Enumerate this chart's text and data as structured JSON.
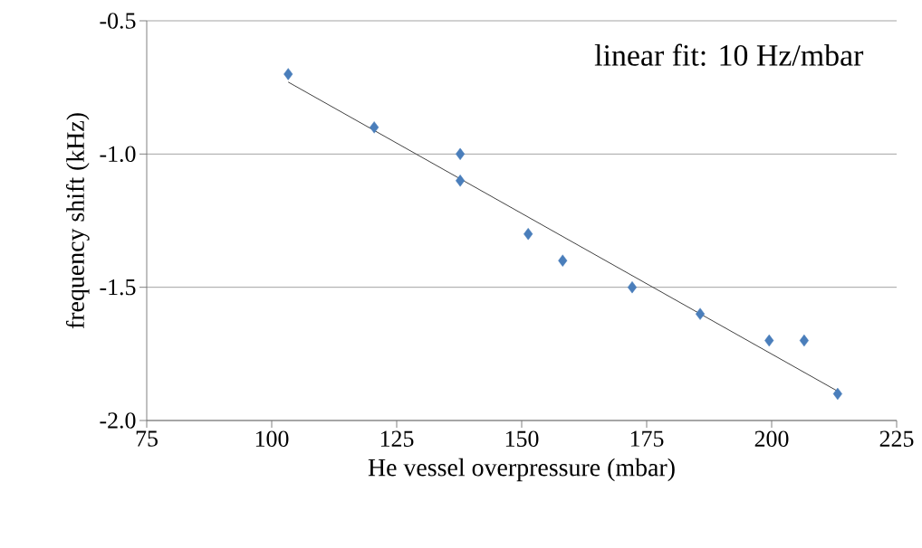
{
  "chart_data": {
    "type": "scatter",
    "xlabel": "He vessel overpressure (mbar)",
    "ylabel": "frequency shift (kHz)",
    "annotations": [
      "linear fit: 10 Hz/mbar"
    ],
    "xlim": [
      75,
      225
    ],
    "xticks": [
      75,
      100,
      125,
      150,
      175,
      200,
      225
    ],
    "ylim": [
      -2.0,
      -0.5
    ],
    "yticks": [
      {
        "value": -2.0,
        "label": "-2.0"
      },
      {
        "value": -1.5,
        "label": "-1.5"
      },
      {
        "value": -1.0,
        "label": "-1.0"
      },
      {
        "value": -0.5,
        "label": "-0.5"
      }
    ],
    "grid": "y",
    "marker": "diamond",
    "series": [
      {
        "color": "#4a7ebb",
        "x": [
          103.3,
          120.5,
          137.7,
          137.7,
          151.3,
          158.2,
          172.1,
          185.7,
          199.5,
          206.5,
          213.2
        ],
        "values": [
          -0.7,
          -0.9,
          -1.0,
          -1.1,
          -1.3,
          -1.4,
          -1.5,
          -1.6,
          -1.7,
          -1.7,
          -1.9
        ]
      },
      {
        "type": "line",
        "marker": "none",
        "color": "#404040",
        "x": [
          103.3,
          213.2
        ],
        "values": [
          -0.73,
          -1.89
        ]
      }
    ]
  }
}
